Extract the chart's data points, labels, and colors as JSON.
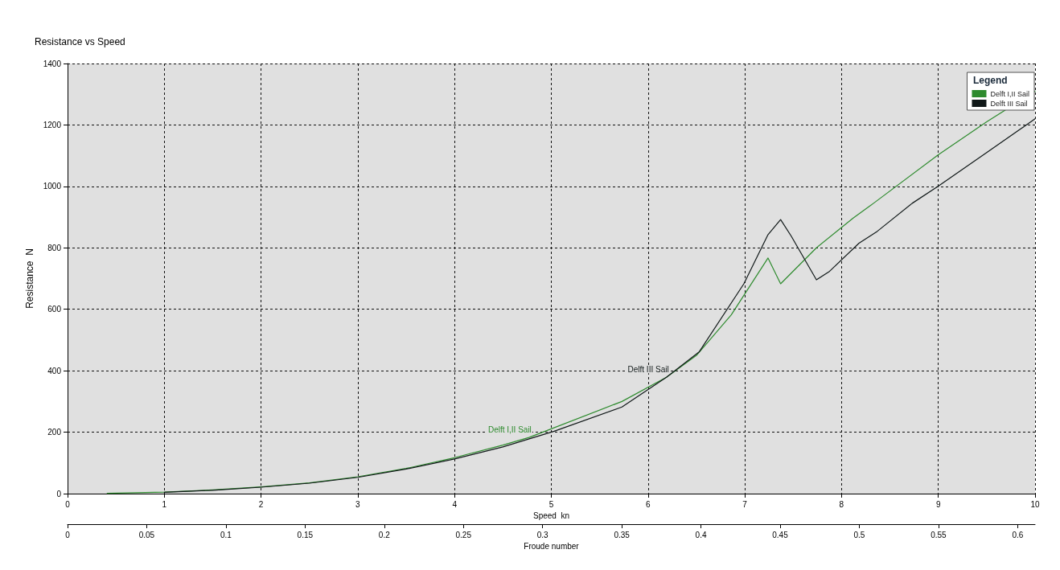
{
  "chart_data": {
    "type": "line",
    "title": "Resistance vs Speed",
    "xlabel": "Speed  kn",
    "ylabel": "Resistance  N",
    "x2label": "Froude number",
    "legend_title": "Legend",
    "legend": "top right",
    "grid": true,
    "line_style": "solid",
    "marker": "none",
    "xlim": [
      0,
      10
    ],
    "xticks": [
      0,
      1,
      2,
      3,
      4,
      5,
      6,
      7,
      8,
      9,
      10
    ],
    "ylim": [
      0,
      1400
    ],
    "yticks": [
      0,
      200,
      400,
      600,
      800,
      1000,
      1200,
      1400
    ],
    "x2lim": [
      0,
      0.611
    ],
    "x2ticks": [
      0,
      0.05,
      0.1,
      0.15,
      0.2,
      0.25,
      0.3,
      0.35,
      0.4,
      0.45,
      0.5,
      0.55,
      0.6
    ],
    "series": [
      {
        "name": "Delft I,II Sail",
        "color": "#2e8b2e",
        "x": [
          0.41,
          1,
          1.5,
          2,
          2.5,
          3,
          3.5,
          4,
          4.5,
          4.77,
          5.73,
          6.19,
          6.5,
          6.86,
          7.24,
          7.37,
          7.74,
          8.12,
          8.33,
          9,
          9.5,
          10
        ],
        "values": [
          1,
          5,
          12,
          22,
          35,
          55,
          82,
          117,
          158,
          183,
          300,
          379,
          450,
          582,
          767,
          683,
          800,
          897,
          945,
          1103,
          1210,
          1310
        ]
      },
      {
        "name": "Delft III Sail",
        "color": "#101818",
        "x": [
          1,
          1.5,
          2,
          2.5,
          3,
          3.5,
          4,
          4.5,
          5.03,
          5.73,
          6.19,
          6.53,
          6.99,
          7.24,
          7.37,
          7.48,
          7.74,
          7.87,
          8.18,
          8.37,
          8.73,
          9,
          9.5,
          10
        ],
        "values": [
          4,
          11,
          21,
          34,
          53,
          80,
          113,
          152,
          203,
          282,
          379,
          462,
          683,
          843,
          892,
          838,
          696,
          722,
          815,
          854,
          945,
          1001,
          1110,
          1220
        ]
      }
    ],
    "annotations": [
      {
        "text": "Delft I,II Sail",
        "x": 4.77,
        "y": 183
      },
      {
        "text": "Delft III Sail",
        "x": 6.19,
        "y": 379
      }
    ]
  }
}
